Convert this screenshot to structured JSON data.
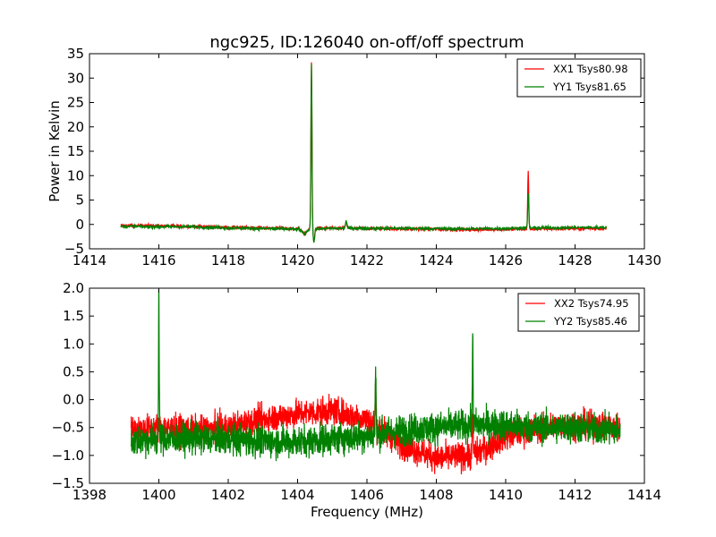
{
  "chart_data": [
    {
      "type": "line",
      "title": "ngc925, ID:126040 on-off/off spectrum",
      "xlabel": "",
      "ylabel": "Power in Kelvin",
      "xlim": [
        1414,
        1430
      ],
      "ylim": [
        -5,
        35
      ],
      "xticks": [
        "1414",
        "1416",
        "1418",
        "1420",
        "1422",
        "1424",
        "1426",
        "1428",
        "1430"
      ],
      "yticks": [
        "−5",
        "0",
        "5",
        "10",
        "15",
        "20",
        "25",
        "30",
        "35"
      ],
      "x_range": [
        1414.9,
        1428.9
      ],
      "legend_position": "top-right",
      "series": [
        {
          "name": "XX1 Tsys80.98",
          "color": "#ff0000",
          "baseline": [
            [
              1414.9,
              -0.2
            ],
            [
              1417.0,
              -0.4
            ],
            [
              1418.0,
              -0.6
            ],
            [
              1419.5,
              -0.8
            ],
            [
              1420.0,
              -0.9
            ],
            [
              1421.0,
              -0.8
            ],
            [
              1423.0,
              -0.9
            ],
            [
              1424.5,
              -1.0
            ],
            [
              1425.0,
              -1.1
            ],
            [
              1426.0,
              -1.0
            ],
            [
              1427.0,
              -0.9
            ],
            [
              1428.9,
              -0.8
            ]
          ],
          "noise": 0.25,
          "features": [
            [
              1420.2,
              -2.0,
              0.06
            ],
            [
              1420.4,
              33.3,
              0.015
            ],
            [
              1420.47,
              -3.5,
              0.02
            ],
            [
              1421.4,
              0.6,
              0.02
            ],
            [
              1426.65,
              10.8,
              0.015
            ]
          ]
        },
        {
          "name": "YY1 Tsys81.65",
          "color": "#008000",
          "baseline": [
            [
              1414.9,
              -0.4
            ],
            [
              1417.0,
              -0.5
            ],
            [
              1418.0,
              -0.7
            ],
            [
              1419.5,
              -0.9
            ],
            [
              1420.0,
              -1.0
            ],
            [
              1421.0,
              -0.8
            ],
            [
              1423.0,
              -0.8
            ],
            [
              1424.5,
              -0.9
            ],
            [
              1425.0,
              -0.9
            ],
            [
              1426.0,
              -0.8
            ],
            [
              1427.0,
              -0.7
            ],
            [
              1428.9,
              -0.6
            ]
          ],
          "noise": 0.25,
          "features": [
            [
              1420.2,
              -2.0,
              0.06
            ],
            [
              1420.4,
              32.8,
              0.015
            ],
            [
              1420.47,
              -3.6,
              0.02
            ],
            [
              1421.4,
              0.8,
              0.02
            ],
            [
              1426.65,
              6.5,
              0.015
            ]
          ]
        }
      ]
    },
    {
      "type": "line",
      "title": "",
      "xlabel": "Frequency (MHz)",
      "ylabel": "",
      "xlim": [
        1398,
        1414
      ],
      "ylim": [
        -1.5,
        2.0
      ],
      "xticks": [
        "1398",
        "1400",
        "1402",
        "1404",
        "1406",
        "1408",
        "1410",
        "1412",
        "1414"
      ],
      "yticks": [
        "−1.5",
        "−1.0",
        "−0.5",
        "0.0",
        "0.5",
        "1.0",
        "1.5",
        "2.0"
      ],
      "x_range": [
        1399.2,
        1413.3
      ],
      "legend_position": "top-right",
      "series": [
        {
          "name": "XX2 Tsys74.95",
          "color": "#ff0000",
          "baseline": [
            [
              1399.2,
              -0.55
            ],
            [
              1400.0,
              -0.5
            ],
            [
              1401.0,
              -0.55
            ],
            [
              1402.0,
              -0.5
            ],
            [
              1403.0,
              -0.35
            ],
            [
              1404.0,
              -0.25
            ],
            [
              1405.0,
              -0.2
            ],
            [
              1406.0,
              -0.35
            ],
            [
              1407.0,
              -0.8
            ],
            [
              1408.0,
              -1.05
            ],
            [
              1409.0,
              -1.0
            ],
            [
              1409.5,
              -0.85
            ],
            [
              1410.0,
              -0.65
            ],
            [
              1411.0,
              -0.5
            ],
            [
              1412.0,
              -0.45
            ],
            [
              1413.3,
              -0.5
            ]
          ],
          "noise": 0.18,
          "features": [
            [
              1406.25,
              0.3,
              0.012
            ],
            [
              1409.05,
              -0.3,
              0.012
            ]
          ]
        },
        {
          "name": "YY2 Tsys85.46",
          "color": "#008000",
          "baseline": [
            [
              1399.2,
              -0.75
            ],
            [
              1400.0,
              -0.7
            ],
            [
              1401.0,
              -0.7
            ],
            [
              1402.0,
              -0.7
            ],
            [
              1403.0,
              -0.75
            ],
            [
              1404.0,
              -0.75
            ],
            [
              1405.0,
              -0.7
            ],
            [
              1406.0,
              -0.65
            ],
            [
              1407.0,
              -0.55
            ],
            [
              1408.0,
              -0.5
            ],
            [
              1409.0,
              -0.45
            ],
            [
              1410.0,
              -0.45
            ],
            [
              1411.0,
              -0.5
            ],
            [
              1412.0,
              -0.5
            ],
            [
              1413.3,
              -0.55
            ]
          ],
          "noise": 0.2,
          "features": [
            [
              1400.0,
              1.85,
              0.01
            ],
            [
              1406.25,
              0.5,
              0.012
            ],
            [
              1409.05,
              1.25,
              0.01
            ]
          ]
        }
      ]
    }
  ]
}
